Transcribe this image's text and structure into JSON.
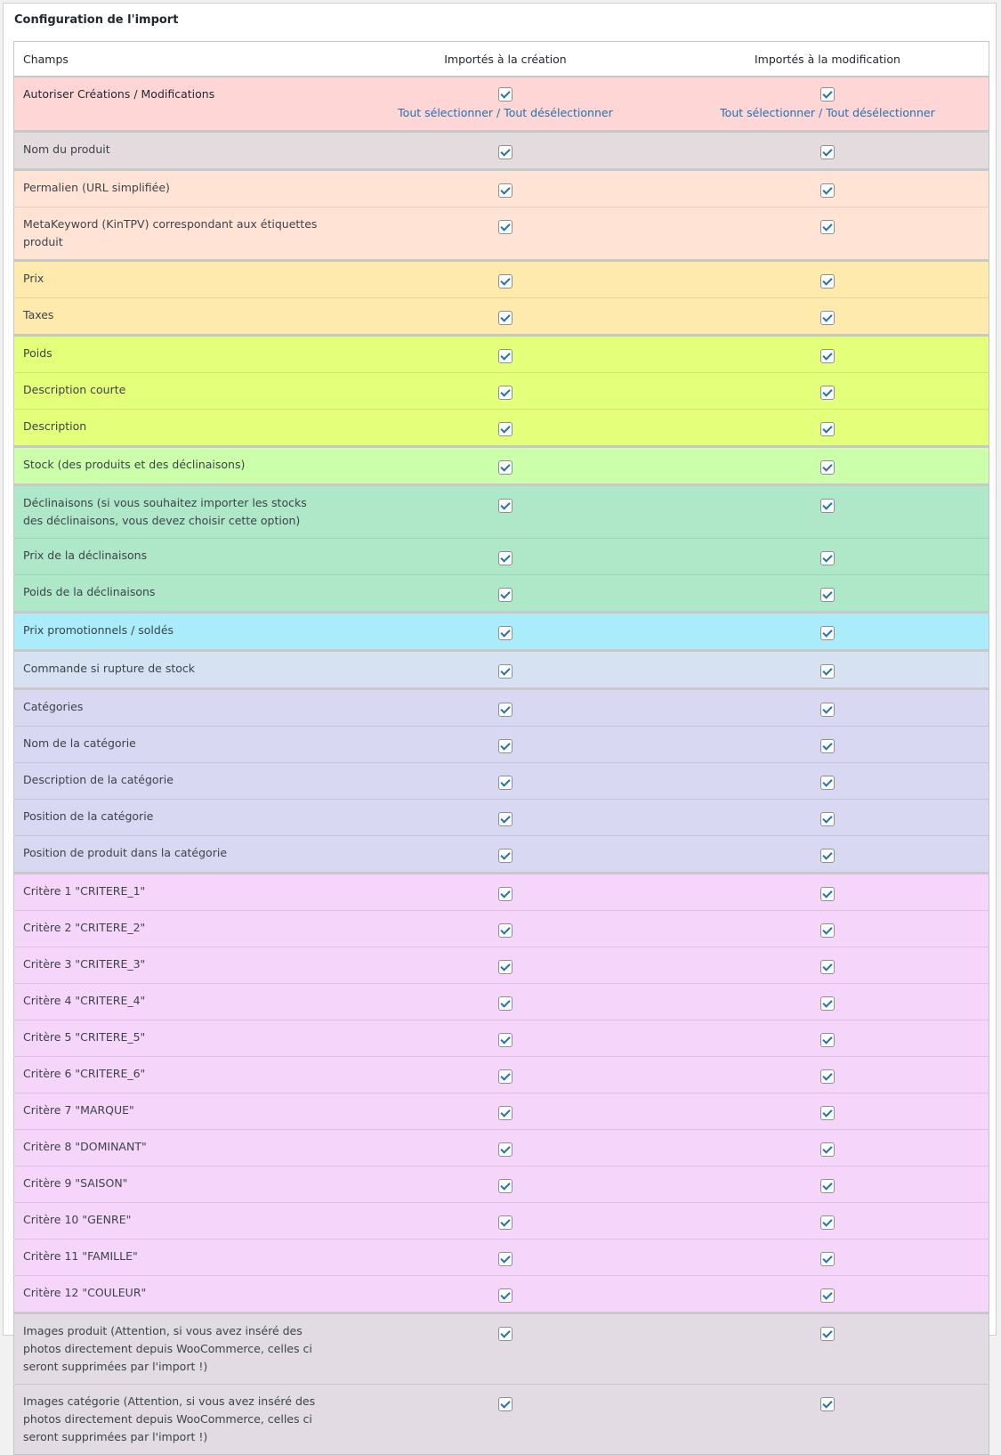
{
  "title": "Configuration de l'import",
  "headers": [
    "Champs",
    "Importés à la création",
    "Importés à la modification"
  ],
  "allow_row": {
    "label": "Autoriser Créations / Modifications",
    "link_create": "Tout sélectionner / Tout désélectionner",
    "link_modify": "Tout sélectionner / Tout désélectionner",
    "color": "#ffd6d6",
    "create": true,
    "modify": true
  },
  "groups": [
    {
      "color": "#e3dbdd",
      "rows": [
        "Nom du produit"
      ]
    },
    {
      "color": "#ffe4d6",
      "rows": [
        "Permalien (URL simplifiée)",
        "MetaKeyword (KinTPV) correspondant aux étiquettes produit"
      ]
    },
    {
      "color": "#ffeaae",
      "rows": [
        "Prix",
        "Taxes"
      ]
    },
    {
      "color": "#e4ff7a",
      "rows": [
        "Poids",
        "Description courte",
        "Description"
      ]
    },
    {
      "color": "#ccffaa",
      "rows": [
        "Stock (des produits et des déclinaisons)"
      ]
    },
    {
      "color": "#aee8c8",
      "rows": [
        "Déclinaisons (si vous souhaitez importer les stocks des déclinaisons, vous devez choisir cette option)",
        "Prix de la déclinaisons",
        "Poids de la déclinaisons"
      ]
    },
    {
      "color": "#aaecfa",
      "rows": [
        "Prix promotionnels / soldés"
      ]
    },
    {
      "color": "#d6e2f2",
      "rows": [
        "Commande si rupture de stock"
      ]
    },
    {
      "color": "#d8d8f2",
      "rows": [
        "Catégories",
        "Nom de la catégorie",
        "Description de la catégorie",
        "Position de la catégorie",
        "Position de produit dans la catégorie"
      ]
    },
    {
      "color": "#f5d6fa",
      "rows": [
        "Critère 1 \"CRITERE_1\"",
        "Critère 2 \"CRITERE_2\"",
        "Critère 3 \"CRITERE_3\"",
        "Critère 4 \"CRITERE_4\"",
        "Critère 5 \"CRITERE_5\"",
        "Critère 6 \"CRITERE_6\"",
        "Critère 7 \"MARQUE\"",
        "Critère 8 \"DOMINANT\"",
        "Critère 9 \"SAISON\"",
        "Critère 10 \"GENRE\"",
        "Critère 11 \"FAMILLE\"",
        "Critère 12 \"COULEUR\""
      ]
    },
    {
      "color": "#e3dbe3",
      "rows": [
        "Images produit (Attention, si vous avez inséré des photos directement depuis WooCommerce, celles ci seront supprimées par l'import !)",
        "Images catégorie (Attention, si vous avez inséré des photos directement depuis WooCommerce, celles ci seront supprimées par l'import !)"
      ]
    }
  ],
  "all_checked": true
}
